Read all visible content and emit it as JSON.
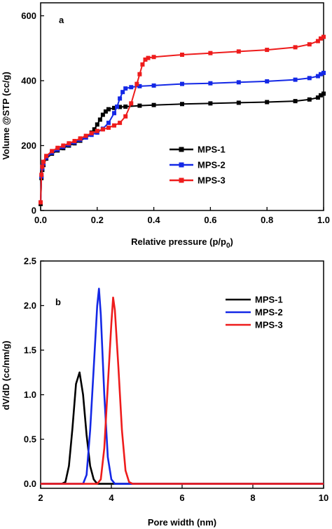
{
  "chart_data": [
    {
      "type": "line",
      "panel_label": "a",
      "xlabel": "Relative pressure (p/p",
      "xlabel_sub": "0",
      "xlabel_close": ")",
      "ylabel": "Volume @STP (cc/g)",
      "xlim": [
        0,
        1.0
      ],
      "ylim": [
        0,
        640
      ],
      "x_ticks": [
        "0.0",
        "0.2",
        "0.4",
        "0.6",
        "0.8",
        "1.0"
      ],
      "y_ticks": [
        "0",
        "200",
        "400",
        "600"
      ],
      "x_tick_values": [
        0,
        0.2,
        0.4,
        0.6,
        0.8,
        1.0
      ],
      "y_tick_values": [
        0,
        200,
        400,
        600
      ],
      "legend": "center-right",
      "series": [
        {
          "name": "MPS-1",
          "color": "#000000",
          "x": [
            0.0,
            0.003,
            0.006,
            0.01,
            0.02,
            0.04,
            0.06,
            0.08,
            0.1,
            0.12,
            0.14,
            0.16,
            0.18,
            0.19,
            0.2,
            0.21,
            0.22,
            0.23,
            0.24,
            0.26,
            0.28,
            0.3,
            0.35,
            0.4,
            0.5,
            0.6,
            0.7,
            0.8,
            0.9,
            0.95,
            0.98,
            0.99,
            1.0
          ],
          "y": [
            20,
            100,
            125,
            140,
            160,
            175,
            185,
            192,
            200,
            207,
            215,
            225,
            240,
            250,
            265,
            280,
            295,
            305,
            312,
            316,
            319,
            320,
            323,
            325,
            328,
            330,
            332,
            334,
            337,
            342,
            348,
            355,
            360
          ]
        },
        {
          "name": "MPS-2",
          "color": "#1428e6",
          "x": [
            0.0,
            0.003,
            0.006,
            0.01,
            0.02,
            0.04,
            0.06,
            0.08,
            0.1,
            0.12,
            0.14,
            0.16,
            0.18,
            0.2,
            0.22,
            0.24,
            0.26,
            0.27,
            0.28,
            0.29,
            0.3,
            0.32,
            0.35,
            0.4,
            0.5,
            0.6,
            0.7,
            0.8,
            0.9,
            0.95,
            0.98,
            0.99,
            1.0
          ],
          "y": [
            25,
            105,
            130,
            145,
            163,
            178,
            188,
            196,
            203,
            210,
            218,
            225,
            233,
            240,
            252,
            270,
            300,
            320,
            345,
            365,
            376,
            380,
            383,
            385,
            390,
            392,
            395,
            398,
            403,
            408,
            414,
            420,
            424
          ]
        },
        {
          "name": "MPS-3",
          "color": "#ee1c1c",
          "x": [
            0.0,
            0.003,
            0.006,
            0.01,
            0.02,
            0.04,
            0.06,
            0.08,
            0.1,
            0.12,
            0.14,
            0.16,
            0.18,
            0.2,
            0.22,
            0.24,
            0.26,
            0.28,
            0.3,
            0.32,
            0.34,
            0.35,
            0.36,
            0.37,
            0.38,
            0.4,
            0.5,
            0.6,
            0.7,
            0.8,
            0.9,
            0.95,
            0.98,
            0.99,
            1.0
          ],
          "y": [
            25,
            110,
            135,
            150,
            168,
            183,
            193,
            200,
            207,
            214,
            222,
            230,
            238,
            245,
            250,
            255,
            262,
            270,
            290,
            330,
            390,
            420,
            450,
            465,
            470,
            473,
            480,
            485,
            490,
            495,
            503,
            512,
            522,
            530,
            535
          ]
        }
      ]
    },
    {
      "type": "line",
      "panel_label": "b",
      "xlabel": "Pore width (nm)",
      "ylabel": "dV/dD (cc/nm/g)",
      "xlim": [
        2,
        10
      ],
      "ylim": [
        -0.05,
        2.5
      ],
      "x_ticks": [
        "2",
        "4",
        "6",
        "8",
        "10"
      ],
      "y_ticks": [
        "0.0",
        "0.5",
        "1.0",
        "1.5",
        "2.0",
        "2.5"
      ],
      "x_tick_values": [
        2,
        4,
        6,
        8,
        10
      ],
      "y_tick_values": [
        0,
        0.5,
        1.0,
        1.5,
        2.0,
        2.5
      ],
      "legend": "top-right",
      "series": [
        {
          "name": "MPS-1",
          "color": "#000000",
          "x": [
            2.0,
            2.6,
            2.7,
            2.8,
            2.9,
            3.0,
            3.1,
            3.2,
            3.3,
            3.4,
            3.5,
            3.6,
            3.7,
            4.0,
            6.0,
            8.0,
            10.0
          ],
          "y": [
            0.0,
            0.0,
            0.02,
            0.2,
            0.62,
            1.12,
            1.25,
            1.0,
            0.55,
            0.2,
            0.05,
            0.0,
            0.0,
            0.0,
            0.0,
            0.0,
            0.0
          ]
        },
        {
          "name": "MPS-2",
          "color": "#1428e6",
          "x": [
            2.0,
            3.2,
            3.3,
            3.4,
            3.5,
            3.6,
            3.65,
            3.7,
            3.8,
            3.9,
            4.0,
            4.1,
            4.2,
            6.0,
            8.0,
            10.0
          ],
          "y": [
            0.0,
            0.0,
            0.1,
            0.6,
            1.3,
            2.0,
            2.19,
            1.9,
            1.0,
            0.3,
            0.05,
            0.0,
            0.0,
            0.0,
            0.0,
            0.0
          ]
        },
        {
          "name": "MPS-3",
          "color": "#ee1c1c",
          "x": [
            2.0,
            3.6,
            3.7,
            3.8,
            3.9,
            4.0,
            4.05,
            4.1,
            4.2,
            4.3,
            4.4,
            4.5,
            4.6,
            6.0,
            8.0,
            10.0
          ],
          "y": [
            0.0,
            0.0,
            0.05,
            0.4,
            1.1,
            1.8,
            2.09,
            1.95,
            1.3,
            0.6,
            0.15,
            0.02,
            0.0,
            0.0,
            0.0,
            0.0
          ]
        }
      ]
    }
  ]
}
